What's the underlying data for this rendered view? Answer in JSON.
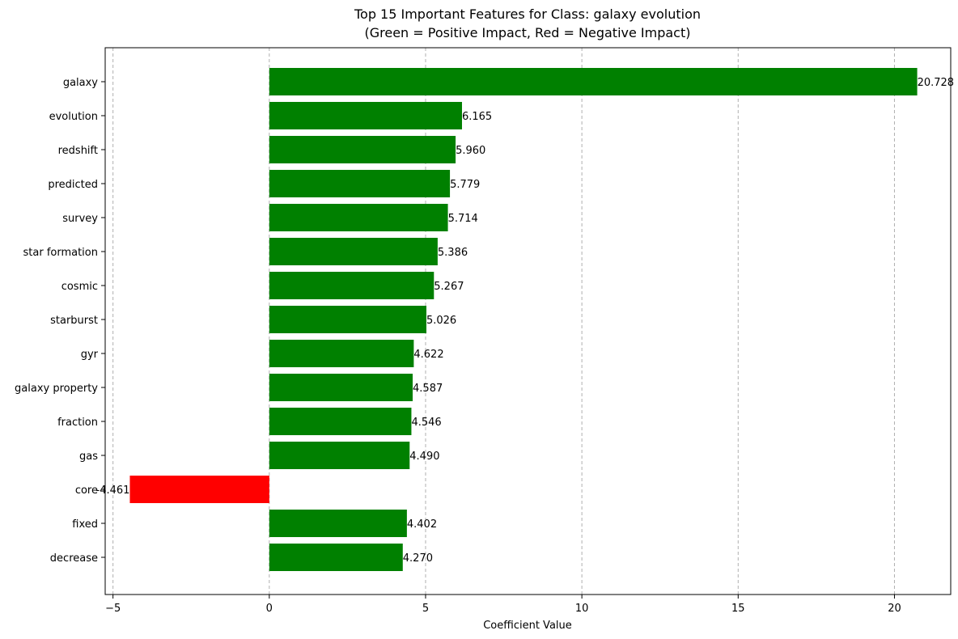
{
  "chart_data": {
    "type": "bar",
    "orientation": "horizontal",
    "title": "Top 15 Important Features for Class: galaxy evolution",
    "subtitle": "(Green = Positive Impact, Red = Negative Impact)",
    "xlabel": "Coefficient Value",
    "ylabel": "",
    "xlim": [
      -5.25,
      21.8
    ],
    "xticks": [
      -5,
      0,
      5,
      10,
      15,
      20
    ],
    "grid": "vertical dashed",
    "positive_color": "#008000",
    "negative_color": "#ff0000",
    "categories": [
      "galaxy",
      "evolution",
      "redshift",
      "predicted",
      "survey",
      "star formation",
      "cosmic",
      "starburst",
      "gyr",
      "galaxy property",
      "fraction",
      "gas",
      "core",
      "fixed",
      "decrease"
    ],
    "values": [
      20.728,
      6.165,
      5.96,
      5.779,
      5.714,
      5.386,
      5.267,
      5.026,
      4.622,
      4.587,
      4.546,
      4.49,
      -4.461,
      4.402,
      4.27
    ],
    "value_labels": [
      "20.728",
      "6.165",
      "5.960",
      "5.779",
      "5.714",
      "5.386",
      "5.267",
      "5.026",
      "4.622",
      "4.587",
      "4.546",
      "4.490",
      "-4.461",
      "4.402",
      "4.270"
    ]
  }
}
